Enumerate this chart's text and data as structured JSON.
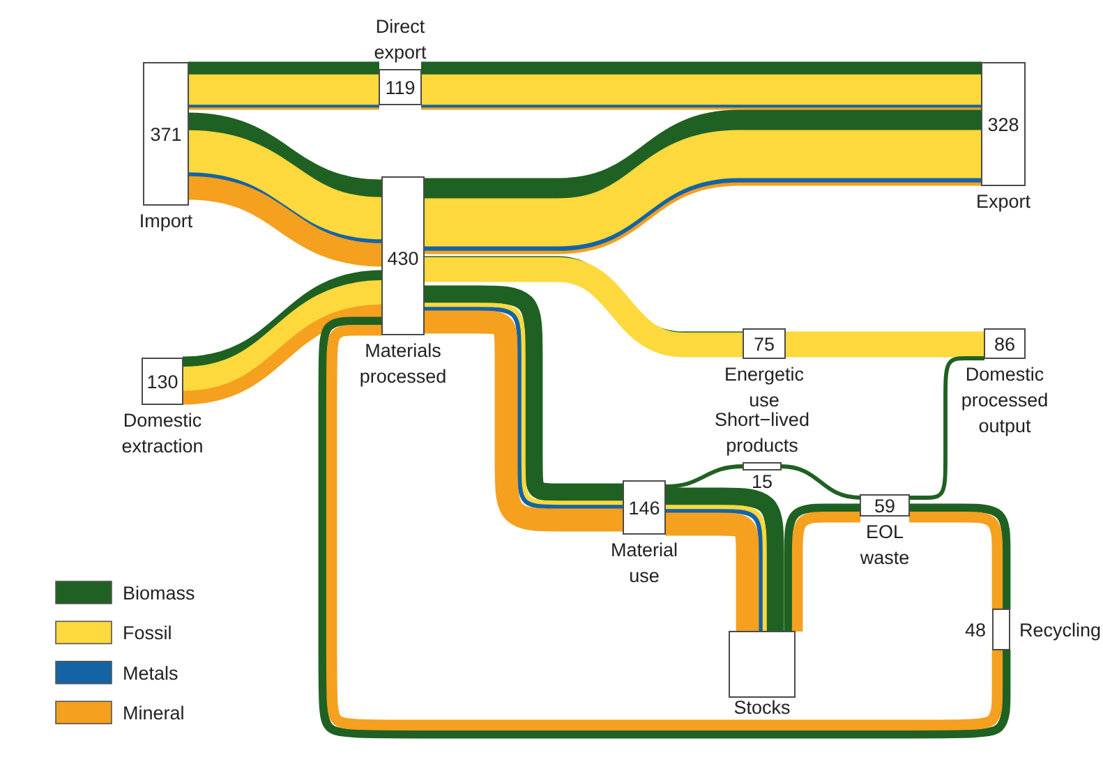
{
  "chart_data": {
    "type": "other",
    "categories": [
      "Import",
      "Direct export",
      "Export",
      "Materials processed",
      "Domestic extraction",
      "Energetic use",
      "Domestic processed output",
      "Short−lived products",
      "Material use",
      "EOL waste",
      "Recycling",
      "Stocks"
    ],
    "values": [
      371,
      119,
      328,
      430,
      130,
      75,
      86,
      15,
      146,
      59,
      48,
      null
    ],
    "data_labels": true,
    "series": [
      {
        "name": "Biomass",
        "color": "#1f6122",
        "values": [
          null,
          null,
          null,
          null,
          null,
          null,
          null,
          null,
          null,
          null,
          null,
          null
        ]
      },
      {
        "name": "Fossil",
        "color": "#fdd93d",
        "values": [
          null,
          null,
          null,
          null,
          null,
          null,
          null,
          null,
          null,
          null,
          null,
          null
        ]
      },
      {
        "name": "Metals",
        "color": "#1464a5",
        "values": [
          null,
          null,
          null,
          null,
          null,
          null,
          null,
          null,
          null,
          null,
          null,
          null
        ]
      },
      {
        "name": "Mineral",
        "color": "#f5a01e",
        "values": [
          null,
          null,
          null,
          null,
          null,
          null,
          null,
          null,
          null,
          null,
          null,
          null
        ]
      }
    ],
    "legend": "bottom left"
  }
}
